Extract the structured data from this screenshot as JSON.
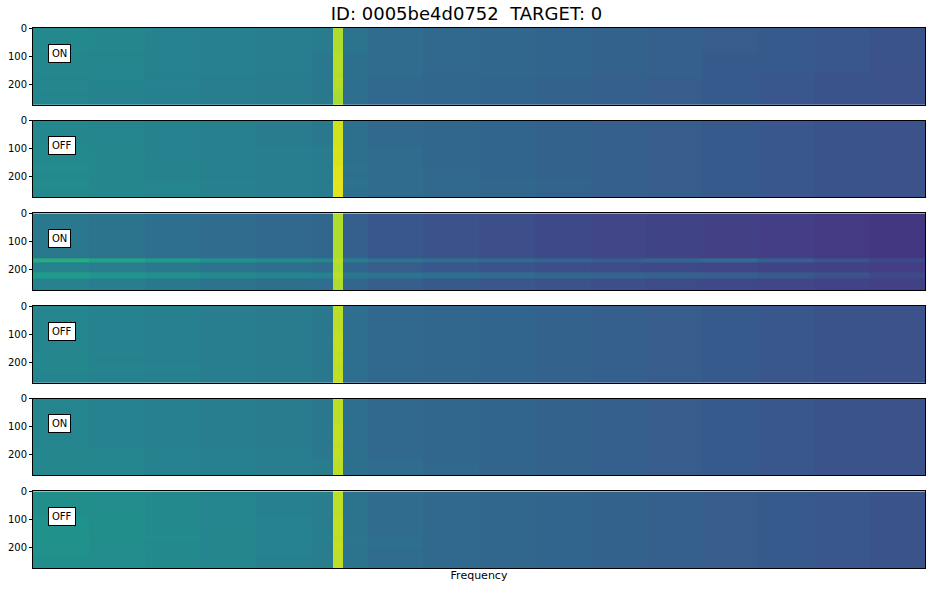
{
  "chart_data": {
    "type": "heatmap",
    "title": "ID: 0005be4d0752  TARGET: 0",
    "x_label": "Frequency",
    "tick_labels": "y",
    "color": "viridis",
    "zlim": [
      0,
      1
    ],
    "xlim": [
      0,
      256
    ],
    "ylim": [
      273,
      0
    ],
    "yticks": [
      0,
      100,
      200
    ],
    "x_edges": [
      0,
      16,
      32,
      48,
      64,
      80,
      86,
      89,
      96,
      112,
      128,
      144,
      160,
      176,
      192,
      208,
      224,
      240,
      256
    ],
    "y_edges": [
      0,
      90,
      160,
      175,
      210,
      230,
      273
    ],
    "panels": [
      {
        "label": "ON",
        "z": [
          [
            0.47,
            0.46,
            0.44,
            0.43,
            0.42,
            0.41,
            0.88,
            0.38,
            0.35,
            0.34,
            0.33,
            0.32,
            0.31,
            0.3,
            0.29,
            0.28,
            0.27,
            0.26
          ],
          [
            0.46,
            0.45,
            0.44,
            0.43,
            0.42,
            0.4,
            0.89,
            0.37,
            0.35,
            0.34,
            0.33,
            0.32,
            0.31,
            0.3,
            0.28,
            0.28,
            0.27,
            0.25
          ],
          [
            0.46,
            0.45,
            0.43,
            0.43,
            0.41,
            0.4,
            0.88,
            0.37,
            0.35,
            0.33,
            0.33,
            0.32,
            0.3,
            0.3,
            0.28,
            0.27,
            0.26,
            0.25
          ],
          [
            0.45,
            0.45,
            0.44,
            0.42,
            0.41,
            0.4,
            0.89,
            0.37,
            0.34,
            0.33,
            0.32,
            0.31,
            0.3,
            0.29,
            0.28,
            0.27,
            0.26,
            0.25
          ],
          [
            0.46,
            0.44,
            0.43,
            0.42,
            0.41,
            0.4,
            0.88,
            0.36,
            0.34,
            0.33,
            0.32,
            0.31,
            0.3,
            0.29,
            0.28,
            0.27,
            0.26,
            0.25
          ],
          [
            0.45,
            0.44,
            0.43,
            0.42,
            0.41,
            0.4,
            0.87,
            0.36,
            0.34,
            0.33,
            0.32,
            0.31,
            0.3,
            0.29,
            0.28,
            0.27,
            0.26,
            0.25
          ]
        ]
      },
      {
        "label": "OFF",
        "z": [
          [
            0.46,
            0.45,
            0.44,
            0.43,
            0.41,
            0.4,
            0.93,
            0.37,
            0.34,
            0.33,
            0.32,
            0.31,
            0.3,
            0.29,
            0.28,
            0.27,
            0.26,
            0.25
          ],
          [
            0.47,
            0.46,
            0.44,
            0.43,
            0.42,
            0.41,
            0.94,
            0.37,
            0.35,
            0.33,
            0.32,
            0.31,
            0.3,
            0.29,
            0.28,
            0.27,
            0.26,
            0.25
          ],
          [
            0.48,
            0.46,
            0.45,
            0.43,
            0.42,
            0.41,
            0.95,
            0.38,
            0.35,
            0.34,
            0.33,
            0.31,
            0.3,
            0.29,
            0.28,
            0.27,
            0.26,
            0.25
          ],
          [
            0.47,
            0.46,
            0.44,
            0.43,
            0.42,
            0.41,
            0.95,
            0.37,
            0.35,
            0.34,
            0.32,
            0.31,
            0.3,
            0.29,
            0.28,
            0.27,
            0.26,
            0.25
          ],
          [
            0.48,
            0.46,
            0.45,
            0.44,
            0.42,
            0.41,
            0.96,
            0.38,
            0.35,
            0.34,
            0.33,
            0.32,
            0.3,
            0.29,
            0.28,
            0.27,
            0.26,
            0.25
          ],
          [
            0.47,
            0.46,
            0.45,
            0.43,
            0.42,
            0.41,
            0.96,
            0.37,
            0.35,
            0.34,
            0.33,
            0.31,
            0.3,
            0.29,
            0.28,
            0.27,
            0.26,
            0.25
          ]
        ]
      },
      {
        "label": "ON",
        "z": [
          [
            0.4,
            0.38,
            0.36,
            0.35,
            0.34,
            0.33,
            0.88,
            0.3,
            0.27,
            0.25,
            0.24,
            0.22,
            0.21,
            0.2,
            0.19,
            0.18,
            0.17,
            0.16
          ],
          [
            0.4,
            0.38,
            0.36,
            0.35,
            0.34,
            0.33,
            0.88,
            0.3,
            0.27,
            0.25,
            0.24,
            0.22,
            0.21,
            0.2,
            0.19,
            0.18,
            0.17,
            0.16
          ],
          [
            0.62,
            0.58,
            0.55,
            0.5,
            0.48,
            0.46,
            0.9,
            0.42,
            0.38,
            0.36,
            0.34,
            0.32,
            0.3,
            0.33,
            0.35,
            0.3,
            0.26,
            0.22
          ],
          [
            0.44,
            0.42,
            0.4,
            0.38,
            0.36,
            0.35,
            0.88,
            0.32,
            0.29,
            0.27,
            0.26,
            0.24,
            0.23,
            0.22,
            0.21,
            0.2,
            0.19,
            0.18
          ],
          [
            0.55,
            0.52,
            0.5,
            0.47,
            0.45,
            0.44,
            0.9,
            0.4,
            0.38,
            0.36,
            0.35,
            0.33,
            0.32,
            0.31,
            0.3,
            0.28,
            0.25,
            0.22
          ],
          [
            0.44,
            0.42,
            0.4,
            0.38,
            0.37,
            0.36,
            0.88,
            0.33,
            0.3,
            0.28,
            0.27,
            0.25,
            0.24,
            0.23,
            0.22,
            0.21,
            0.2,
            0.19
          ]
        ]
      },
      {
        "label": "OFF",
        "z": [
          [
            0.45,
            0.44,
            0.43,
            0.42,
            0.41,
            0.4,
            0.9,
            0.36,
            0.34,
            0.33,
            0.32,
            0.31,
            0.3,
            0.29,
            0.28,
            0.27,
            0.26,
            0.25
          ],
          [
            0.45,
            0.44,
            0.43,
            0.42,
            0.41,
            0.4,
            0.91,
            0.36,
            0.34,
            0.33,
            0.32,
            0.31,
            0.3,
            0.29,
            0.28,
            0.27,
            0.26,
            0.25
          ],
          [
            0.46,
            0.45,
            0.43,
            0.42,
            0.41,
            0.4,
            0.9,
            0.36,
            0.34,
            0.33,
            0.32,
            0.31,
            0.3,
            0.29,
            0.28,
            0.27,
            0.26,
            0.25
          ],
          [
            0.46,
            0.44,
            0.43,
            0.42,
            0.41,
            0.4,
            0.91,
            0.36,
            0.34,
            0.33,
            0.32,
            0.31,
            0.3,
            0.29,
            0.28,
            0.27,
            0.26,
            0.25
          ],
          [
            0.46,
            0.45,
            0.44,
            0.42,
            0.41,
            0.4,
            0.9,
            0.37,
            0.34,
            0.33,
            0.32,
            0.31,
            0.3,
            0.29,
            0.28,
            0.27,
            0.26,
            0.25
          ],
          [
            0.45,
            0.44,
            0.43,
            0.42,
            0.41,
            0.4,
            0.91,
            0.36,
            0.34,
            0.33,
            0.32,
            0.31,
            0.3,
            0.29,
            0.28,
            0.27,
            0.26,
            0.25
          ]
        ]
      },
      {
        "label": "ON",
        "z": [
          [
            0.45,
            0.44,
            0.43,
            0.42,
            0.41,
            0.4,
            0.9,
            0.36,
            0.34,
            0.33,
            0.32,
            0.31,
            0.3,
            0.29,
            0.28,
            0.27,
            0.26,
            0.25
          ],
          [
            0.45,
            0.44,
            0.43,
            0.42,
            0.41,
            0.4,
            0.91,
            0.36,
            0.34,
            0.33,
            0.32,
            0.31,
            0.3,
            0.29,
            0.28,
            0.27,
            0.26,
            0.25
          ],
          [
            0.45,
            0.44,
            0.43,
            0.42,
            0.41,
            0.4,
            0.9,
            0.36,
            0.34,
            0.33,
            0.32,
            0.31,
            0.3,
            0.29,
            0.28,
            0.27,
            0.26,
            0.25
          ],
          [
            0.46,
            0.45,
            0.44,
            0.43,
            0.42,
            0.4,
            0.91,
            0.37,
            0.34,
            0.33,
            0.32,
            0.31,
            0.3,
            0.29,
            0.28,
            0.27,
            0.26,
            0.25
          ],
          [
            0.46,
            0.45,
            0.44,
            0.43,
            0.42,
            0.41,
            0.9,
            0.37,
            0.35,
            0.33,
            0.32,
            0.31,
            0.3,
            0.29,
            0.28,
            0.27,
            0.26,
            0.25
          ],
          [
            0.46,
            0.45,
            0.44,
            0.43,
            0.42,
            0.41,
            0.9,
            0.37,
            0.35,
            0.34,
            0.32,
            0.31,
            0.3,
            0.29,
            0.28,
            0.27,
            0.26,
            0.25
          ]
        ]
      },
      {
        "label": "OFF",
        "z": [
          [
            0.49,
            0.48,
            0.47,
            0.45,
            0.43,
            0.42,
            0.9,
            0.38,
            0.35,
            0.34,
            0.33,
            0.32,
            0.31,
            0.3,
            0.29,
            0.28,
            0.27,
            0.26
          ],
          [
            0.5,
            0.49,
            0.47,
            0.45,
            0.44,
            0.42,
            0.91,
            0.38,
            0.35,
            0.34,
            0.33,
            0.32,
            0.31,
            0.3,
            0.29,
            0.28,
            0.27,
            0.26
          ],
          [
            0.51,
            0.49,
            0.48,
            0.46,
            0.44,
            0.43,
            0.9,
            0.39,
            0.36,
            0.34,
            0.33,
            0.32,
            0.31,
            0.3,
            0.29,
            0.28,
            0.27,
            0.26
          ],
          [
            0.5,
            0.49,
            0.47,
            0.46,
            0.44,
            0.42,
            0.91,
            0.38,
            0.36,
            0.34,
            0.33,
            0.32,
            0.31,
            0.3,
            0.29,
            0.28,
            0.27,
            0.26
          ],
          [
            0.5,
            0.48,
            0.47,
            0.45,
            0.44,
            0.42,
            0.9,
            0.38,
            0.35,
            0.34,
            0.33,
            0.32,
            0.31,
            0.3,
            0.29,
            0.28,
            0.27,
            0.26
          ],
          [
            0.49,
            0.48,
            0.47,
            0.45,
            0.43,
            0.42,
            0.9,
            0.38,
            0.35,
            0.34,
            0.33,
            0.32,
            0.31,
            0.3,
            0.29,
            0.28,
            0.27,
            0.26
          ]
        ]
      }
    ]
  }
}
